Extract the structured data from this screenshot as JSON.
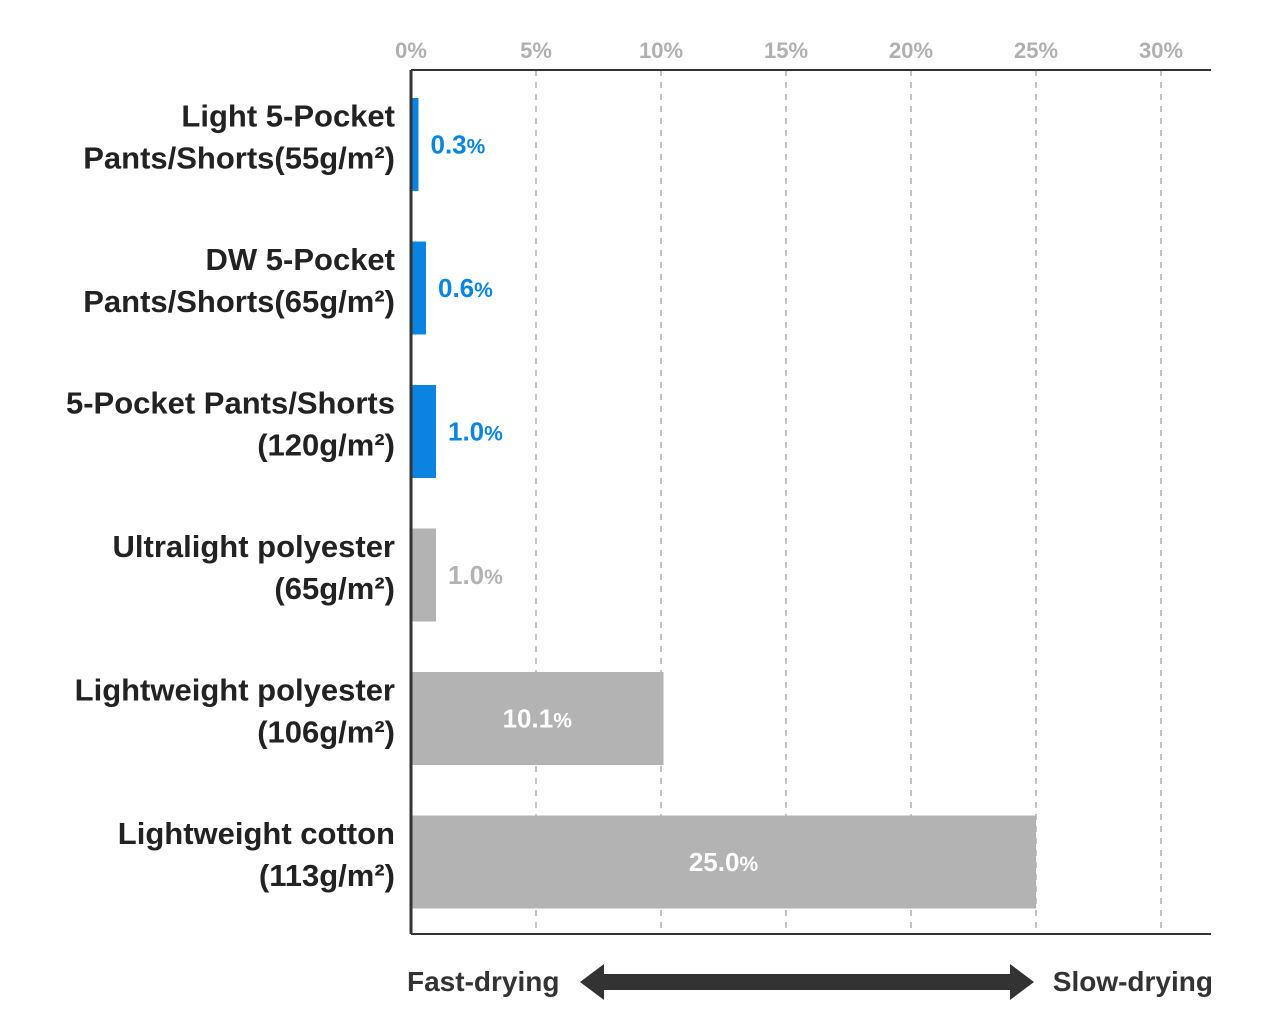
{
  "chart_data": {
    "type": "bar",
    "orientation": "horizontal",
    "categories": [
      [
        "Light 5-Pocket",
        "Pants/Shorts(55g/m²)"
      ],
      [
        "DW 5-Pocket",
        "Pants/Shorts(65g/m²)"
      ],
      [
        "5-Pocket Pants/Shorts",
        "(120g/m²)"
      ],
      [
        "Ultralight polyester",
        "(65g/m²)"
      ],
      [
        "Lightweight polyester",
        "(106g/m²)"
      ],
      [
        "Lightweight cotton",
        "(113g/m²)"
      ]
    ],
    "values": [
      0.3,
      0.6,
      1.0,
      1.0,
      10.1,
      25.0
    ],
    "value_labels": [
      "0.3",
      "0.6",
      "1.0",
      "1.0",
      "10.1",
      "25.0"
    ],
    "value_unit": "%",
    "bar_colors": [
      "#0a84e0",
      "#0a84e0",
      "#0a84e0",
      "#b3b3b3",
      "#b3b3b3",
      "#b3b3b3"
    ],
    "xlim": [
      0,
      30
    ],
    "xticks": [
      0,
      5,
      10,
      15,
      20,
      25,
      30
    ],
    "xtick_labels": [
      "0%",
      "5%",
      "10%",
      "15%",
      "20%",
      "25%",
      "30%"
    ],
    "x_axis_position": "top",
    "grid": "vertical dashed",
    "direction_labels": {
      "left": "Fast-drying",
      "right": "Slow-drying"
    },
    "colors": {
      "highlight": "#0a84e0",
      "comparison": "#b3b3b3",
      "grid": "#c4c4c4",
      "axis": "#333333",
      "text": "#222222",
      "tick_text": "#b0b0b0",
      "arrow": "#333333"
    }
  }
}
